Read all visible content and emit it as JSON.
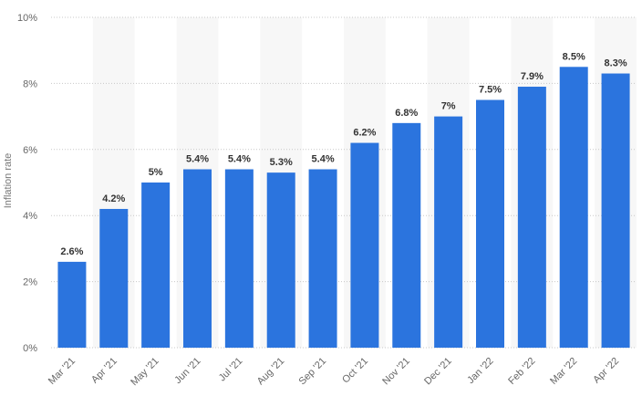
{
  "chart_data": {
    "type": "bar",
    "title": "",
    "xlabel": "",
    "ylabel": "Inflation rate",
    "categories": [
      "Mar '21",
      "Apr '21",
      "May '21",
      "Jun '21",
      "Jul '21",
      "Aug '21",
      "Sep '21",
      "Oct '21",
      "Nov '21",
      "Dec '21",
      "Jan '22",
      "Feb '22",
      "Mar '22",
      "Apr '22"
    ],
    "values": [
      2.6,
      4.2,
      5,
      5.4,
      5.4,
      5.3,
      5.4,
      6.2,
      6.8,
      7,
      7.5,
      7.9,
      8.5,
      8.3
    ],
    "value_labels": [
      "2.6%",
      "4.2%",
      "5%",
      "5.4%",
      "5.4%",
      "5.3%",
      "5.4%",
      "6.2%",
      "6.8%",
      "7%",
      "7.5%",
      "7.9%",
      "8.5%",
      "8.3%"
    ],
    "ylim": [
      0,
      10
    ],
    "yticks": [
      0,
      2,
      4,
      6,
      8,
      10
    ],
    "ytick_labels": [
      "0%",
      "2%",
      "4%",
      "6%",
      "8%",
      "10%"
    ],
    "grid": true,
    "bar_color": "#2b74de",
    "band_color": "#f7f7f7"
  }
}
